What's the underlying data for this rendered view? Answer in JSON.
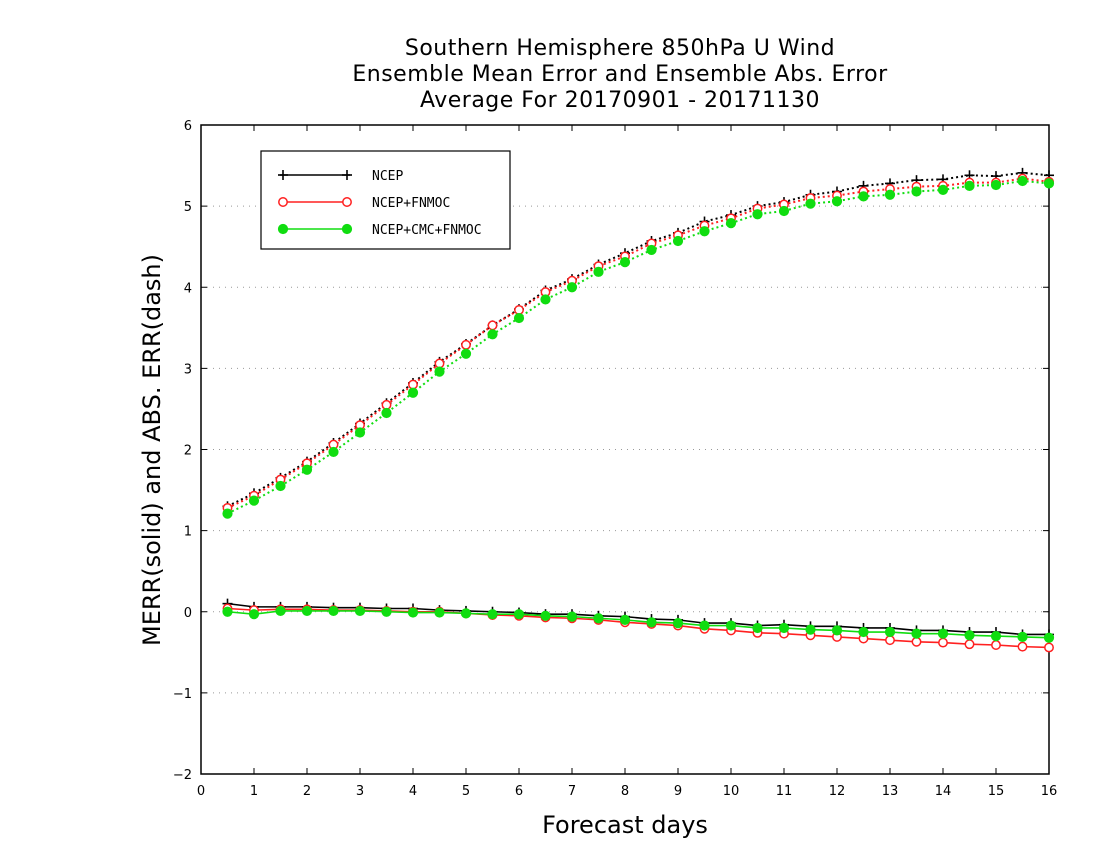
{
  "chart_data": {
    "type": "line",
    "title_lines": [
      "Southern Hemisphere 850hPa U Wind",
      "Ensemble Mean Error and Ensemble Abs. Error",
      "Average For 20170901 - 20171130"
    ],
    "xlabel": "Forecast days",
    "ylabel": "MERR(solid) and ABS. ERR(dash)",
    "xlim": [
      0,
      16
    ],
    "ylim": [
      -2,
      6
    ],
    "x_ticks": [
      0,
      1,
      2,
      3,
      4,
      5,
      6,
      7,
      8,
      9,
      10,
      11,
      12,
      13,
      14,
      15,
      16
    ],
    "y_ticks": [
      -2,
      -1,
      0,
      1,
      2,
      3,
      4,
      5,
      6
    ],
    "y_tick_labels": [
      "−2",
      "−1",
      "0",
      "1",
      "2",
      "3",
      "4",
      "5",
      "6"
    ],
    "grid": "horizontal dotted",
    "legend_position": "top-left",
    "x": [
      0.5,
      1,
      1.5,
      2,
      2.5,
      3,
      3.5,
      4,
      4.5,
      5,
      5.5,
      6,
      6.5,
      7,
      7.5,
      8,
      8.5,
      9,
      9.5,
      10,
      10.5,
      11,
      11.5,
      12,
      12.5,
      13,
      13.5,
      14,
      14.5,
      15,
      15.5,
      16
    ],
    "series": [
      {
        "name": "NCEP",
        "color": "#000000",
        "marker": "plus",
        "mean_error": [
          0.1,
          0.06,
          0.06,
          0.06,
          0.05,
          0.05,
          0.04,
          0.04,
          0.02,
          0.01,
          0.0,
          -0.01,
          -0.03,
          -0.03,
          -0.05,
          -0.06,
          -0.09,
          -0.1,
          -0.14,
          -0.14,
          -0.17,
          -0.16,
          -0.18,
          -0.18,
          -0.2,
          -0.2,
          -0.23,
          -0.23,
          -0.25,
          -0.25,
          -0.28,
          -0.28
        ],
        "abs_error": [
          1.3,
          1.46,
          1.65,
          1.85,
          2.08,
          2.32,
          2.57,
          2.82,
          3.08,
          3.3,
          3.53,
          3.73,
          3.96,
          4.1,
          4.28,
          4.42,
          4.57,
          4.67,
          4.81,
          4.89,
          5.0,
          5.05,
          5.14,
          5.18,
          5.25,
          5.28,
          5.32,
          5.33,
          5.38,
          5.37,
          5.41,
          5.38
        ]
      },
      {
        "name": "NCEP+FNMOC",
        "color": "#ff2020",
        "marker": "open-circle",
        "mean_error": [
          0.04,
          0.02,
          0.03,
          0.03,
          0.02,
          0.02,
          0.01,
          0.0,
          0.0,
          -0.02,
          -0.04,
          -0.05,
          -0.07,
          -0.08,
          -0.1,
          -0.13,
          -0.15,
          -0.17,
          -0.21,
          -0.23,
          -0.26,
          -0.27,
          -0.29,
          -0.31,
          -0.33,
          -0.35,
          -0.37,
          -0.38,
          -0.4,
          -0.41,
          -0.43,
          -0.44
        ],
        "abs_error": [
          1.28,
          1.43,
          1.63,
          1.83,
          2.06,
          2.3,
          2.55,
          2.8,
          3.06,
          3.29,
          3.53,
          3.72,
          3.94,
          4.08,
          4.26,
          4.38,
          4.54,
          4.64,
          4.76,
          4.85,
          4.97,
          5.02,
          5.1,
          5.13,
          5.18,
          5.21,
          5.24,
          5.25,
          5.29,
          5.29,
          5.34,
          5.3
        ]
      },
      {
        "name": "NCEP+CMC+FNMOC",
        "color": "#10dd10",
        "marker": "filled-circle",
        "mean_error": [
          0.0,
          -0.03,
          0.01,
          0.01,
          0.01,
          0.01,
          0.0,
          -0.01,
          -0.01,
          -0.02,
          -0.03,
          -0.03,
          -0.05,
          -0.06,
          -0.08,
          -0.1,
          -0.13,
          -0.14,
          -0.17,
          -0.17,
          -0.2,
          -0.2,
          -0.22,
          -0.23,
          -0.25,
          -0.25,
          -0.27,
          -0.27,
          -0.29,
          -0.3,
          -0.31,
          -0.32
        ],
        "abs_error": [
          1.21,
          1.37,
          1.55,
          1.75,
          1.97,
          2.21,
          2.45,
          2.7,
          2.96,
          3.18,
          3.42,
          3.62,
          3.85,
          4.0,
          4.19,
          4.31,
          4.46,
          4.57,
          4.69,
          4.79,
          4.9,
          4.94,
          5.03,
          5.06,
          5.12,
          5.14,
          5.18,
          5.2,
          5.25,
          5.26,
          5.31,
          5.28
        ]
      }
    ]
  }
}
